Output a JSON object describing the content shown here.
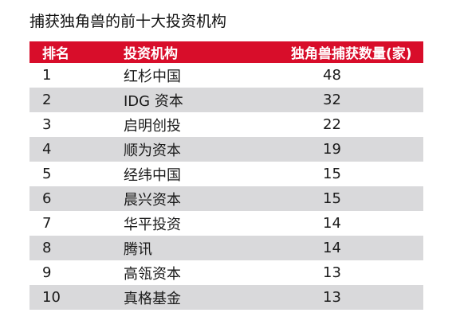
{
  "title": "捕获独角兽的前十大投资机构",
  "table": {
    "headers": {
      "rank": "排名",
      "name": "投资机构",
      "count": "独角兽捕获数量(家)"
    },
    "rows": [
      {
        "rank": "1",
        "name": "红杉中国",
        "count": "48"
      },
      {
        "rank": "2",
        "name": "IDG 资本",
        "count": "32"
      },
      {
        "rank": "3",
        "name": "启明创投",
        "count": "22"
      },
      {
        "rank": "4",
        "name": "顺为资本",
        "count": "19"
      },
      {
        "rank": "5",
        "name": "经纬中国",
        "count": "15"
      },
      {
        "rank": "6",
        "name": "晨兴资本",
        "count": "15"
      },
      {
        "rank": "7",
        "name": "华平投资",
        "count": "14"
      },
      {
        "rank": "8",
        "name": "腾讯",
        "count": "14"
      },
      {
        "rank": "9",
        "name": "高瓴资本",
        "count": "13"
      },
      {
        "rank": "10",
        "name": "真格基金",
        "count": "13"
      }
    ]
  },
  "colors": {
    "header_bg": "#d80d2a",
    "header_text": "#ffffff",
    "alt_row_bg": "#d9d9db"
  }
}
